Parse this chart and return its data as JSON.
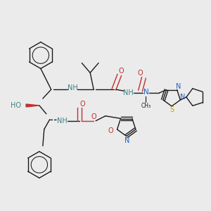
{
  "background_color": "#ebebeb",
  "bond_color": "#1a1a1a",
  "figsize": [
    3.0,
    3.0
  ],
  "dpi": 100,
  "colors": {
    "N": "#2060c0",
    "O": "#c03030",
    "S": "#b8a800",
    "NH": "#408080",
    "C": "#1a1a1a"
  },
  "lw": 1.0,
  "fs": 6.5,
  "fsm": 5.5
}
